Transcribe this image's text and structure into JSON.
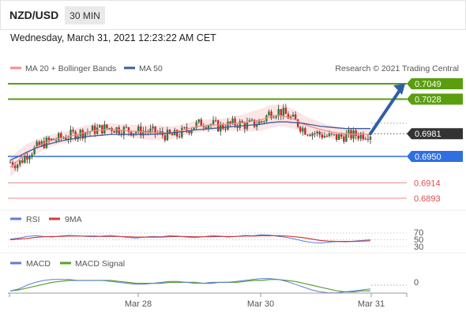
{
  "header": {
    "symbol": "NZD/USD",
    "timeframe": "30 MIN"
  },
  "datetime": "Wednesday, March 31, 2021 12:23:22 AM CET",
  "legend": {
    "ma20": "MA 20 + Bollinger Bands",
    "ma50": "MA 50",
    "copyright": "Research © 2021 Trading Central"
  },
  "colors": {
    "green": "#5a9e0f",
    "blue": "#2f6fe0",
    "red": "#e24b4b",
    "dark": "#333333",
    "arrow": "#2f5fa8",
    "ma20": "#f28c8c",
    "ma50": "#3b5f9a",
    "band": "#fbdcdc",
    "rsi": "#5b7fd8",
    "rsi_ma": "#d43a3a",
    "macd": "#5b7fd8",
    "macd_signal": "#5aa02c"
  },
  "price_levels": [
    {
      "value": "0.7049",
      "kind": "resistance",
      "style": "box-green"
    },
    {
      "value": "0.7028",
      "kind": "resistance",
      "style": "box-green"
    },
    {
      "value": "0.6981",
      "kind": "last",
      "style": "box-dark"
    },
    {
      "value": "0.6950",
      "kind": "pivot",
      "style": "box-blue"
    },
    {
      "value": "0.6914",
      "kind": "support",
      "style": "text-red"
    },
    {
      "value": "0.6893",
      "kind": "support",
      "style": "text-red"
    }
  ],
  "rsi_panel": {
    "legend_rsi": "RSI",
    "legend_ma": "9MA",
    "levels": [
      "70",
      "50",
      "30"
    ]
  },
  "macd_panel": {
    "legend_macd": "MACD",
    "legend_signal": "MACD Signal",
    "level": "0"
  },
  "x_axis": {
    "labels": [
      "Mar 28",
      "Mar 30",
      "Mar 31"
    ]
  },
  "chart_data": {
    "type": "candlestick",
    "symbol": "NZD/USD",
    "timeframe": "30 MIN",
    "y_range": [
      0.6874,
      0.7063
    ],
    "close_path": [
      0.6942,
      0.694,
      0.6953,
      0.6961,
      0.6968,
      0.6972,
      0.6975,
      0.6978,
      0.6982,
      0.6983,
      0.6986,
      0.6988,
      0.6989,
      0.6987,
      0.6986,
      0.6984,
      0.6985,
      0.6983,
      0.698,
      0.6978,
      0.6979,
      0.6986,
      0.6992,
      0.6996,
      0.6994,
      0.699,
      0.6993,
      0.6995,
      0.6993,
      0.6994,
      0.6997,
      0.701,
      0.7012,
      0.7006,
      0.6998,
      0.6987,
      0.6983,
      0.698,
      0.6977,
      0.6976,
      0.6978,
      0.6979,
      0.698,
      0.6981
    ],
    "ma20": [
      0.6935,
      0.6945,
      0.6955,
      0.6962,
      0.6968,
      0.6972,
      0.6975,
      0.6977,
      0.698,
      0.6983,
      0.6985,
      0.6986,
      0.6987,
      0.6986,
      0.6985,
      0.6984,
      0.6983,
      0.6982,
      0.6982,
      0.6982,
      0.6984,
      0.6987,
      0.699,
      0.6992,
      0.6993,
      0.6993,
      0.6994,
      0.6995,
      0.6996,
      0.6998,
      0.7,
      0.7004,
      0.7006,
      0.7004,
      0.7,
      0.6994,
      0.699,
      0.6987,
      0.6984,
      0.6982,
      0.6981,
      0.698,
      0.698,
      0.698
    ],
    "ma50": [
      0.6945,
      0.695,
      0.6956,
      0.6961,
      0.6965,
      0.6968,
      0.6971,
      0.6973,
      0.6975,
      0.6977,
      0.6978,
      0.6979,
      0.698,
      0.698,
      0.698,
      0.698,
      0.698,
      0.698,
      0.6981,
      0.6982,
      0.6983,
      0.6984,
      0.6986,
      0.6987,
      0.6988,
      0.6989,
      0.699,
      0.6991,
      0.6992,
      0.6993,
      0.6994,
      0.6996,
      0.6997,
      0.6997,
      0.6996,
      0.6995,
      0.6993,
      0.6991,
      0.699,
      0.6989,
      0.6988,
      0.6988,
      0.6988,
      0.6988
    ],
    "band_width": [
      0.0012,
      0.0014,
      0.0012,
      0.001,
      0.0009,
      0.0008,
      0.0008,
      0.0008,
      0.0009,
      0.0009,
      0.0009,
      0.0008,
      0.0008,
      0.0008,
      0.0008,
      0.0009,
      0.001,
      0.001,
      0.001,
      0.0009,
      0.0008,
      0.0008,
      0.0008,
      0.0008,
      0.0008,
      0.0008,
      0.0009,
      0.001,
      0.0012,
      0.0014,
      0.0015,
      0.0016,
      0.0015,
      0.0014,
      0.0013,
      0.0012,
      0.0011,
      0.001,
      0.0009,
      0.0009,
      0.0008,
      0.0008,
      0.0008,
      0.0008
    ],
    "projection": {
      "from": 0.6981,
      "to": 0.7049
    },
    "rsi": [
      52,
      55,
      60,
      62,
      60,
      58,
      61,
      63,
      62,
      60,
      59,
      61,
      63,
      60,
      57,
      55,
      58,
      60,
      59,
      62,
      61,
      58,
      56,
      59,
      62,
      61,
      58,
      60,
      63,
      62,
      65,
      64,
      60,
      57,
      52,
      46,
      42,
      40,
      43,
      45,
      44,
      46,
      48,
      50
    ],
    "rsi_ma": [
      50,
      52,
      54,
      57,
      59,
      60,
      60,
      61,
      61,
      61,
      61,
      60,
      60,
      60,
      59,
      58,
      58,
      58,
      58,
      59,
      60,
      60,
      59,
      59,
      59,
      60,
      60,
      60,
      61,
      61,
      62,
      62,
      62,
      61,
      59,
      56,
      52,
      48,
      46,
      45,
      45,
      45,
      46,
      47
    ],
    "macd": [
      -6,
      -4,
      0,
      3,
      5,
      6,
      6,
      6,
      5,
      5,
      5,
      5,
      4,
      3,
      2,
      1,
      1,
      2,
      3,
      4,
      4,
      3,
      2,
      2,
      3,
      3,
      3,
      4,
      5,
      6,
      7,
      7,
      6,
      4,
      1,
      -2,
      -5,
      -7,
      -8,
      -8,
      -7,
      -6,
      -5,
      -4
    ],
    "macd_signal": [
      -6,
      -5,
      -3,
      -1,
      1,
      3,
      4,
      5,
      5,
      5,
      5,
      5,
      5,
      4,
      3,
      2,
      2,
      2,
      2,
      3,
      3,
      3,
      3,
      2,
      2,
      3,
      3,
      3,
      4,
      5,
      5,
      6,
      6,
      5,
      4,
      2,
      0,
      -2,
      -4,
      -6,
      -7,
      -7,
      -6,
      -6
    ]
  }
}
